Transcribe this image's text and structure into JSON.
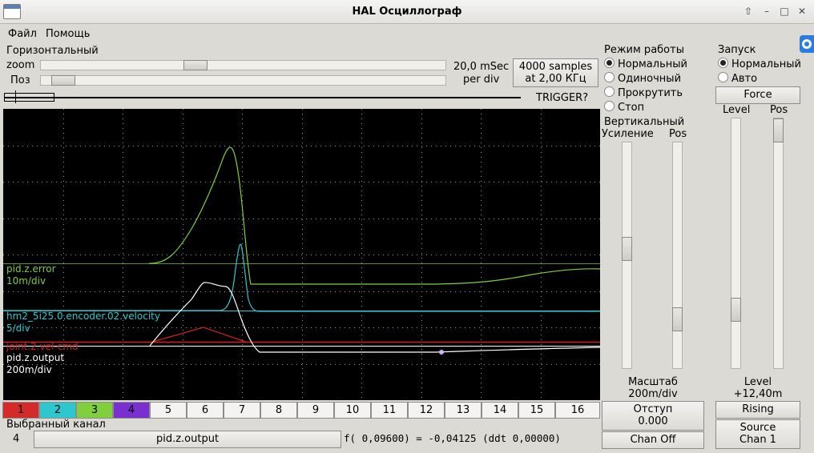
{
  "window": {
    "title": "HAL Осциллограф"
  },
  "menu": {
    "file": "Файл",
    "help": "Помощь"
  },
  "horizontal": {
    "group_label": "Горизонтальный",
    "zoom_label": "zoom",
    "pos_label": "Поз",
    "rate_line1": "20,0 mSec",
    "rate_line2": "per div",
    "samples_line1": "4000 samples",
    "samples_line2": "at 2,00 КГц",
    "trigger_label": "TRIGGER?"
  },
  "run_mode": {
    "group_label": "Режим работы",
    "options": [
      "Нормальный",
      "Одиночный",
      "Прокрутить",
      "Стоп"
    ],
    "selected": "Нормальный"
  },
  "vertical": {
    "group_label": "Вертикальный",
    "gain_label": "Усиление",
    "pos_label": "Pos",
    "scale_label": "Масштаб",
    "scale_value": "200m/div",
    "offset_label": "Отступ",
    "offset_value": "0.000",
    "chan_off_label": "Chan Off"
  },
  "trigger": {
    "group_label": "Запуск",
    "options": [
      "Нормальный",
      "Авто"
    ],
    "selected": "Нормальный",
    "force_label": "Force",
    "level_label": "Level",
    "pos_label": "Pos",
    "level_caption": "Level",
    "level_value": "+12,40m",
    "rising_label": "Rising",
    "source_line1": "Source",
    "source_line2": "Chan  1"
  },
  "traces": [
    {
      "name": "pid.z.error",
      "scale": "10m/div",
      "color": "#7fcf3f"
    },
    {
      "name": "hm2_5i25.0.encoder.02.velocity",
      "scale": "5/div",
      "color": "#2fc7cf"
    },
    {
      "name": "joint.2.vel-cmd",
      "scale": "",
      "color": "#d02020"
    },
    {
      "name": "pid.z.output",
      "scale": "200m/div",
      "color": "#ffffff"
    }
  ],
  "channels": {
    "labels": [
      "1",
      "2",
      "3",
      "4",
      "5",
      "6",
      "7",
      "8",
      "9",
      "10",
      "11",
      "12",
      "13",
      "14",
      "15",
      "16"
    ],
    "colors": [
      "#d42a2a",
      "#2fc7cf",
      "#7fcf3f",
      "#7a2fd0"
    ]
  },
  "selected_channel": {
    "group_label": "Выбранный канал",
    "number": "4",
    "name": "pid.z.output",
    "readout": "f( 0,09600) = -0,04125 (ddt  0,00000)"
  },
  "colors": {
    "scope_bg": "#000000",
    "grid": "#9a9a9a",
    "window_bg": "#dcdad5"
  }
}
